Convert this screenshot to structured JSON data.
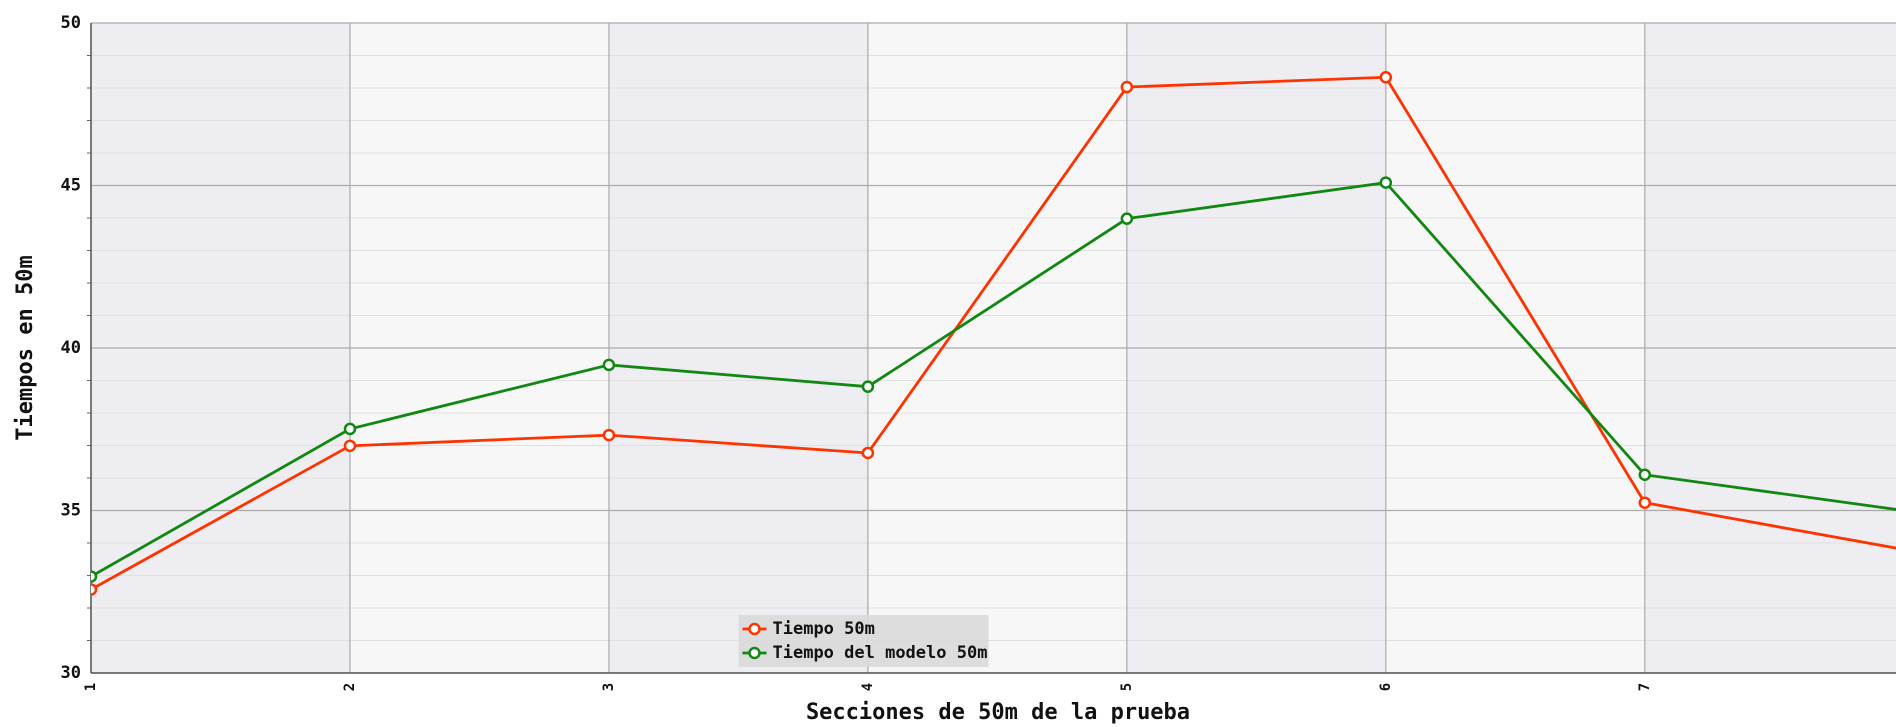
{
  "chart_data": {
    "type": "line",
    "x_label": "Secciones de 50m de la prueba",
    "y_label": "Tiempos en 50m",
    "x": [
      1,
      2,
      3,
      4,
      5,
      6,
      7,
      8
    ],
    "series": [
      {
        "name": "Tiempo 50m",
        "color": "#ff3300",
        "values": [
          32.57,
          36.99,
          37.32,
          36.77,
          48.03,
          48.33,
          35.24,
          33.8
        ]
      },
      {
        "name": "Tiempo del modelo 50m",
        "color": "#118811",
        "values": [
          32.97,
          37.51,
          39.48,
          38.81,
          43.98,
          45.09,
          36.1,
          35.0
        ]
      }
    ],
    "xlim": [
      1,
      7.97
    ],
    "xticks": [
      1,
      2,
      3,
      4,
      5,
      6,
      7
    ],
    "ylim": [
      30,
      50
    ],
    "yticks": [
      30,
      35,
      40,
      45,
      50
    ],
    "grid": true,
    "legend": "bottom-center"
  }
}
